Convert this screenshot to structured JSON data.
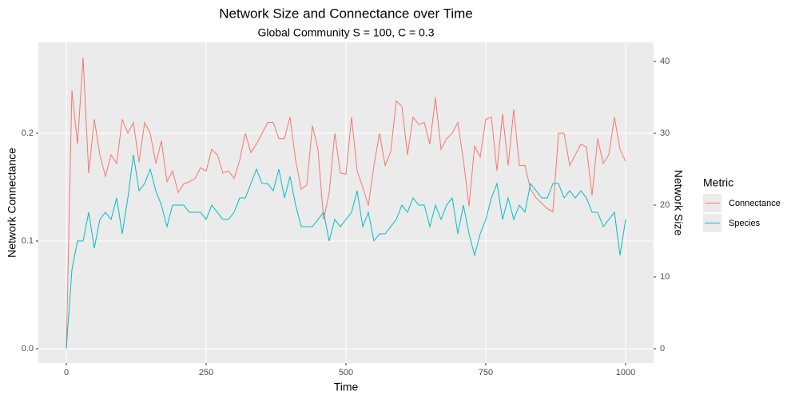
{
  "chart_data": {
    "type": "line",
    "title": "Network Size and Connectance over Time",
    "subtitle": "Global Community S = 100, C = 0.3",
    "x_label": "Time",
    "y_label": "Network Connectance",
    "y2_label": "Network Size",
    "legend_title": "Metric",
    "x": [
      0,
      10,
      20,
      30,
      40,
      50,
      60,
      70,
      80,
      90,
      100,
      110,
      120,
      130,
      140,
      150,
      160,
      170,
      180,
      190,
      200,
      210,
      220,
      230,
      240,
      250,
      260,
      270,
      280,
      290,
      300,
      310,
      320,
      330,
      340,
      350,
      360,
      370,
      380,
      390,
      400,
      410,
      420,
      430,
      440,
      450,
      460,
      470,
      480,
      490,
      500,
      510,
      520,
      530,
      540,
      550,
      560,
      570,
      580,
      590,
      600,
      610,
      620,
      630,
      640,
      650,
      660,
      670,
      680,
      690,
      700,
      710,
      720,
      730,
      740,
      750,
      760,
      770,
      780,
      790,
      800,
      810,
      820,
      830,
      840,
      850,
      860,
      870,
      880,
      890,
      900,
      910,
      920,
      930,
      940,
      950,
      960,
      970,
      980,
      990,
      1000
    ],
    "series": [
      {
        "name": "Connectance",
        "color": "#F8766D",
        "values": [
          0.0,
          0.24,
          0.19,
          0.27,
          0.163,
          0.213,
          0.18,
          0.16,
          0.18,
          0.172,
          0.213,
          0.2,
          0.21,
          0.173,
          0.21,
          0.2,
          0.172,
          0.193,
          0.155,
          0.165,
          0.145,
          0.153,
          0.155,
          0.158,
          0.168,
          0.165,
          0.185,
          0.18,
          0.163,
          0.165,
          0.158,
          0.175,
          0.2,
          0.182,
          0.19,
          0.2,
          0.21,
          0.21,
          0.195,
          0.195,
          0.215,
          0.175,
          0.148,
          0.152,
          0.207,
          0.185,
          0.12,
          0.145,
          0.2,
          0.163,
          0.162,
          0.215,
          0.165,
          0.15,
          0.133,
          0.17,
          0.2,
          0.17,
          0.183,
          0.23,
          0.225,
          0.18,
          0.215,
          0.208,
          0.21,
          0.19,
          0.233,
          0.185,
          0.195,
          0.2,
          0.21,
          0.175,
          0.132,
          0.188,
          0.178,
          0.213,
          0.215,
          0.165,
          0.218,
          0.17,
          0.222,
          0.17,
          0.17,
          0.148,
          0.14,
          0.135,
          0.13,
          0.127,
          0.2,
          0.2,
          0.17,
          0.18,
          0.19,
          0.187,
          0.142,
          0.195,
          0.172,
          0.18,
          0.215,
          0.185,
          0.174
        ]
      },
      {
        "name": "Species",
        "color": "#00BFC4",
        "axis": "y2",
        "values": [
          0,
          11,
          15,
          15,
          19,
          14,
          18,
          19,
          18,
          21,
          16,
          21,
          27,
          22,
          23,
          25,
          22,
          20,
          17,
          20,
          20,
          20,
          19,
          19,
          19,
          18,
          20,
          19,
          18,
          18,
          19,
          21,
          21,
          23,
          25,
          23,
          23,
          22,
          25,
          21,
          24,
          20,
          17,
          17,
          17,
          18,
          19,
          15,
          18,
          17,
          18,
          19,
          22,
          17,
          19,
          15,
          16,
          16,
          17,
          18,
          20,
          19,
          21,
          20,
          20,
          17,
          20,
          18,
          20,
          21,
          16,
          20,
          16,
          13,
          16,
          18,
          21,
          23,
          18,
          21,
          18,
          20,
          19,
          23,
          22,
          21,
          21,
          23,
          23,
          21,
          22,
          21,
          22,
          21,
          19,
          19,
          17,
          18,
          19,
          13,
          18
        ]
      }
    ],
    "xlim": [
      -50,
      1050
    ],
    "xticks": [
      0,
      250,
      500,
      750,
      1000
    ],
    "ylim": [
      -0.0133,
      0.2844
    ],
    "yticks": [
      {
        "value": 0,
        "label": "0.0"
      },
      0.1,
      0.2
    ],
    "y2lim": [
      -2,
      42.67
    ],
    "y2ticks": [
      0,
      10,
      20,
      30,
      40
    ],
    "grid": true
  }
}
